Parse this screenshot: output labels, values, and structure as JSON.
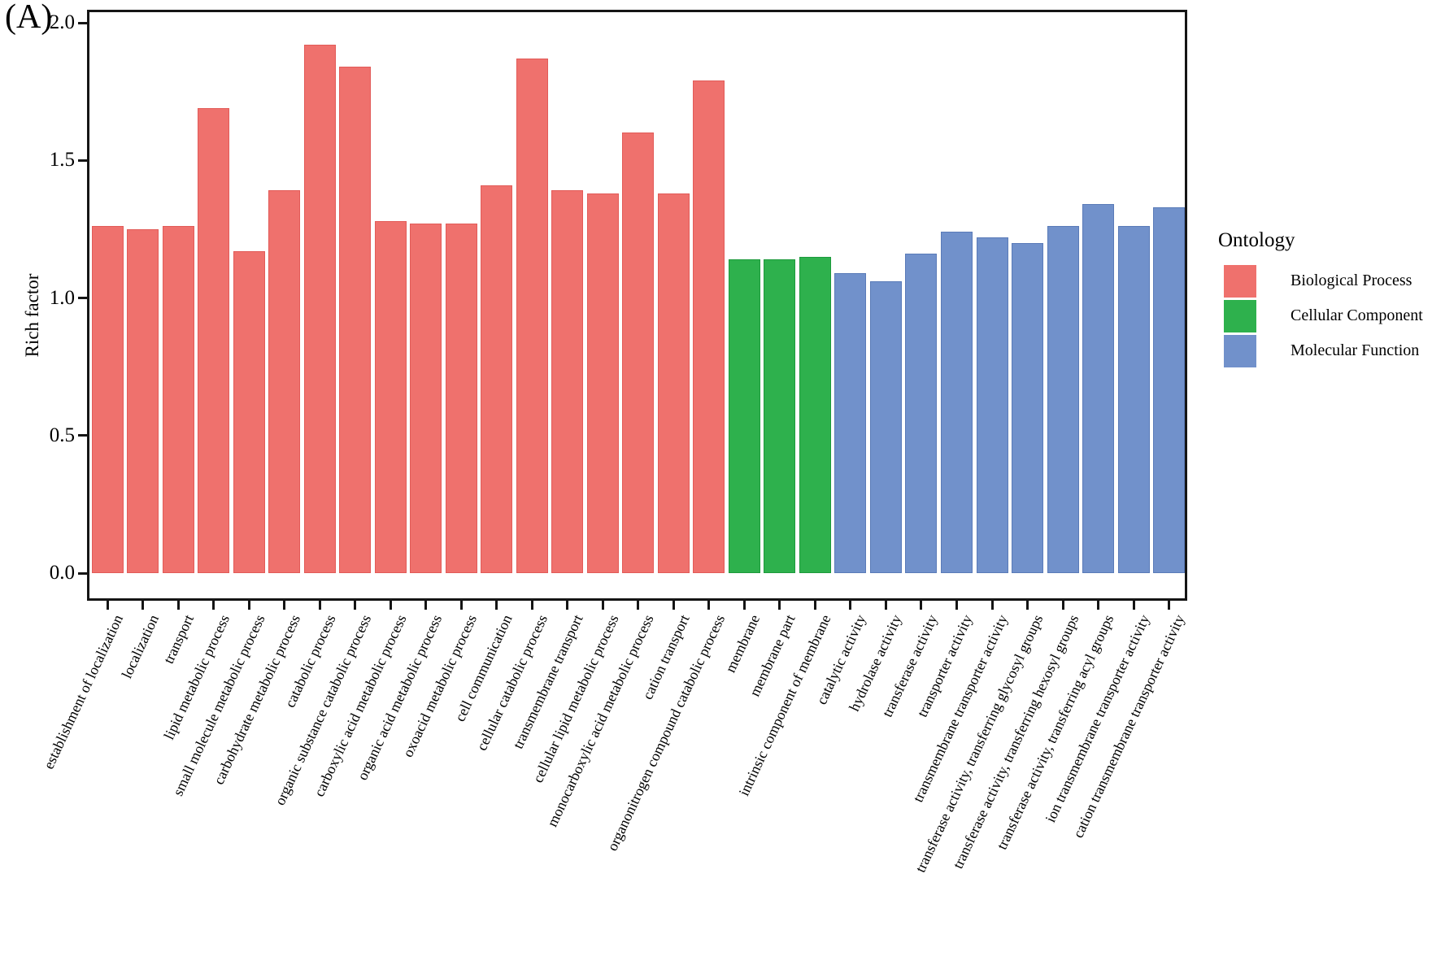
{
  "panel_label": "(A)",
  "chart_data": {
    "type": "bar",
    "title": "",
    "xlabel": "",
    "ylabel": "Rich factor",
    "ylim": [
      0,
      2.05
    ],
    "grid": false,
    "x_tick_angle_deg": 65,
    "yticks": [
      {
        "label": "0.0",
        "value": 0.0
      },
      {
        "label": "0.5",
        "value": 0.5
      },
      {
        "label": "1.0",
        "value": 1.0
      },
      {
        "label": "1.5",
        "value": 1.5
      },
      {
        "label": "2.0",
        "value": 2.0
      }
    ],
    "legend": {
      "title": "Ontology",
      "position": "right",
      "entries": [
        {
          "label": "Biological Process",
          "color": "#EF716D",
          "border": "#E25B58"
        },
        {
          "label": "Cellular Component",
          "color": "#2EB14D",
          "border": "#1E9A3D"
        },
        {
          "label": "Molecular Function",
          "color": "#7191CB",
          "border": "#5A7BB8"
        }
      ]
    },
    "bars": [
      {
        "category": "establishment of localization",
        "value": 1.26,
        "group": "Biological Process"
      },
      {
        "category": "localization",
        "value": 1.25,
        "group": "Biological Process"
      },
      {
        "category": "transport",
        "value": 1.26,
        "group": "Biological Process"
      },
      {
        "category": "lipid metabolic process",
        "value": 1.69,
        "group": "Biological Process"
      },
      {
        "category": "small molecule metabolic process",
        "value": 1.17,
        "group": "Biological Process"
      },
      {
        "category": "carbohydrate metabolic process",
        "value": 1.39,
        "group": "Biological Process"
      },
      {
        "category": "catabolic process",
        "value": 1.92,
        "group": "Biological Process"
      },
      {
        "category": "organic substance catabolic process",
        "value": 1.84,
        "group": "Biological Process"
      },
      {
        "category": "carboxylic acid metabolic process",
        "value": 1.28,
        "group": "Biological Process"
      },
      {
        "category": "organic acid metabolic process",
        "value": 1.27,
        "group": "Biological Process"
      },
      {
        "category": "oxoacid metabolic process",
        "value": 1.27,
        "group": "Biological Process"
      },
      {
        "category": "cell communication",
        "value": 1.41,
        "group": "Biological Process"
      },
      {
        "category": "cellular catabolic process",
        "value": 1.87,
        "group": "Biological Process"
      },
      {
        "category": "transmembrane transport",
        "value": 1.39,
        "group": "Biological Process"
      },
      {
        "category": "cellular lipid metabolic process",
        "value": 1.38,
        "group": "Biological Process"
      },
      {
        "category": "monocarboxylic acid metabolic process",
        "value": 1.6,
        "group": "Biological Process"
      },
      {
        "category": "cation transport",
        "value": 1.38,
        "group": "Biological Process"
      },
      {
        "category": "organonitrogen compound catabolic process",
        "value": 1.79,
        "group": "Biological Process"
      },
      {
        "category": "membrane",
        "value": 1.14,
        "group": "Cellular Component"
      },
      {
        "category": "membrane part",
        "value": 1.14,
        "group": "Cellular Component"
      },
      {
        "category": "intrinsic component of membrane",
        "value": 1.15,
        "group": "Cellular Component"
      },
      {
        "category": "catalytic activity",
        "value": 1.09,
        "group": "Molecular Function"
      },
      {
        "category": "hydrolase activity",
        "value": 1.06,
        "group": "Molecular Function"
      },
      {
        "category": "transferase activity",
        "value": 1.16,
        "group": "Molecular Function"
      },
      {
        "category": "transporter activity",
        "value": 1.24,
        "group": "Molecular Function"
      },
      {
        "category": "transmembrane transporter activity",
        "value": 1.22,
        "group": "Molecular Function"
      },
      {
        "category": "transferase activity, transferring glycosyl groups",
        "value": 1.2,
        "group": "Molecular Function"
      },
      {
        "category": "transferase activity, transferring hexosyl groups",
        "value": 1.26,
        "group": "Molecular Function"
      },
      {
        "category": "transferase activity, transferring acyl groups",
        "value": 1.34,
        "group": "Molecular Function"
      },
      {
        "category": "ion transmembrane transporter activity",
        "value": 1.26,
        "group": "Molecular Function"
      },
      {
        "category": "cation transmembrane transporter activity",
        "value": 1.33,
        "group": "Molecular Function"
      }
    ]
  }
}
